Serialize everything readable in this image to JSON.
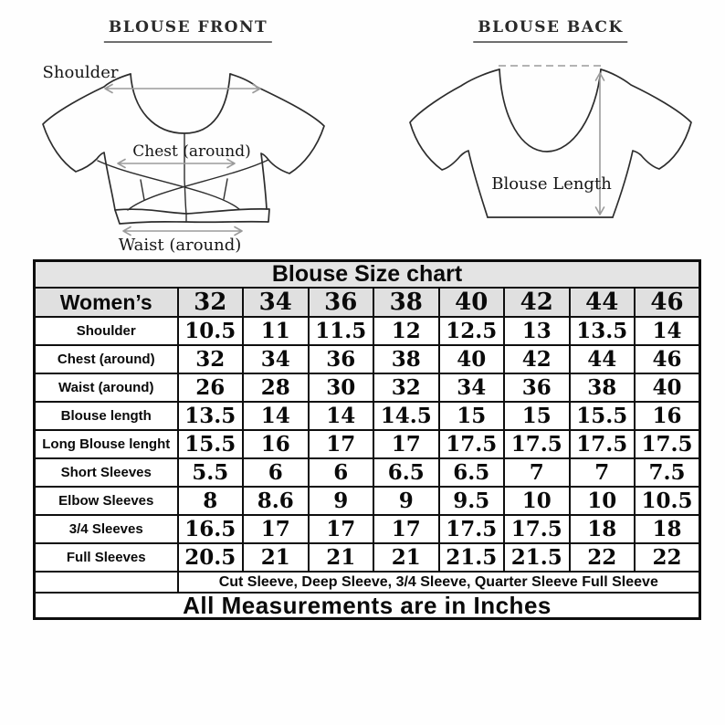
{
  "diagrams": {
    "front": {
      "title": "BLOUSE FRONT",
      "labels": {
        "shoulder": "Shoulder",
        "chest": "Chest (around)",
        "waist": "Waist (around)"
      }
    },
    "back": {
      "title": "BLOUSE BACK",
      "labels": {
        "blouse_length": "Blouse Length"
      }
    }
  },
  "chart_data": {
    "type": "table",
    "title": "Blouse Size chart",
    "columns": [
      "Women’s",
      "32",
      "34",
      "36",
      "38",
      "40",
      "42",
      "44",
      "46"
    ],
    "rows": [
      [
        "Shoulder",
        "10.5",
        "11",
        "11.5",
        "12",
        "12.5",
        "13",
        "13.5",
        "14"
      ],
      [
        "Chest (around)",
        "32",
        "34",
        "36",
        "38",
        "40",
        "42",
        "44",
        "46"
      ],
      [
        "Waist (around)",
        "26",
        "28",
        "30",
        "32",
        "34",
        "36",
        "38",
        "40"
      ],
      [
        "Blouse length",
        "13.5",
        "14",
        "14",
        "14.5",
        "15",
        "15",
        "15.5",
        "16"
      ],
      [
        "Long Blouse lenght",
        "15.5",
        "16",
        "17",
        "17",
        "17.5",
        "17.5",
        "17.5",
        "17.5"
      ],
      [
        "Short Sleeves",
        "5.5",
        "6",
        "6",
        "6.5",
        "6.5",
        "7",
        "7",
        "7.5"
      ],
      [
        "Elbow Sleeves",
        "8",
        "8.6",
        "9",
        "9",
        "9.5",
        "10",
        "10",
        "10.5"
      ],
      [
        "3/4 Sleeves",
        "16.5",
        "17",
        "17",
        "17",
        "17.5",
        "17.5",
        "18",
        "18"
      ],
      [
        "Full Sleeves",
        "20.5",
        "21",
        "21",
        "21",
        "21.5",
        "21.5",
        "22",
        "22"
      ]
    ],
    "notes": [
      "Cut Sleeve, Deep Sleeve, 3/4 Sleeve, Quarter Sleeve Full Sleeve",
      "All Measurements are in Inches"
    ],
    "units": "inches",
    "legend_position": "none",
    "grid": true
  },
  "colors": {
    "header_bg": "#e4e4e4",
    "sizes_bg": "#e0e0e0",
    "border": "#0e0e0e",
    "arrow": "#9b9b9b",
    "line_art": "#2d2d2d"
  }
}
